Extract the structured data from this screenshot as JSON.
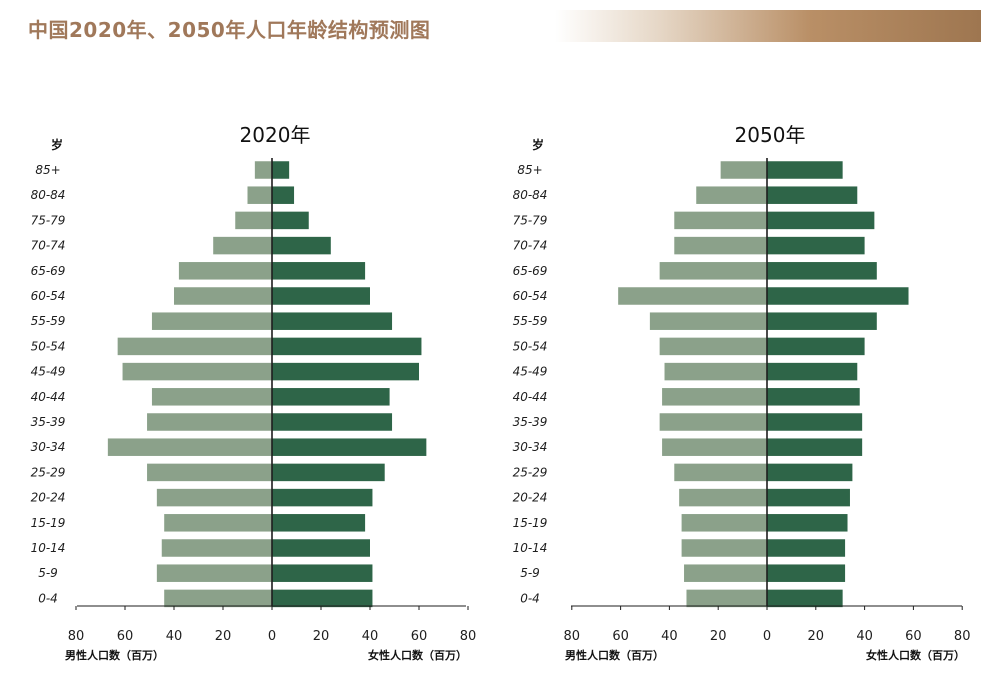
{
  "title": "中国2020年、2050年人口年龄结构预测图",
  "colors": {
    "male": "#8ba18a",
    "female": "#2e6548",
    "title": "#a0785a"
  },
  "chart_data": [
    {
      "type": "bar",
      "title": "2020年",
      "unit_label": "岁",
      "categories": [
        "85+",
        "80-84",
        "75-79",
        "70-74",
        "65-69",
        "60-54",
        "55-59",
        "50-54",
        "45-49",
        "40-44",
        "35-39",
        "30-34",
        "25-29",
        "20-24",
        "15-19",
        "10-14",
        "5-9",
        "0-4"
      ],
      "series": [
        {
          "name": "男性人口数（百万）",
          "values": [
            7,
            10,
            15,
            24,
            38,
            40,
            49,
            63,
            61,
            49,
            51,
            67,
            51,
            47,
            44,
            45,
            47,
            44
          ]
        },
        {
          "name": "女性人口数（百万）",
          "values": [
            7,
            9,
            15,
            24,
            38,
            40,
            49,
            61,
            60,
            48,
            49,
            63,
            46,
            41,
            38,
            40,
            41,
            41
          ]
        }
      ],
      "xlim": [
        -80,
        80
      ],
      "xticks": [
        "80",
        "60",
        "40",
        "20",
        "0",
        "20",
        "40",
        "60",
        "80"
      ],
      "xlabel_left": "男性人口数（百万）",
      "xlabel_right": "女性人口数（百万）"
    },
    {
      "type": "bar",
      "title": "2050年",
      "unit_label": "岁",
      "categories": [
        "85+",
        "80-84",
        "75-79",
        "70-74",
        "65-69",
        "60-54",
        "55-59",
        "50-54",
        "45-49",
        "40-44",
        "35-39",
        "30-34",
        "25-29",
        "20-24",
        "15-19",
        "10-14",
        "5-9",
        "0-4"
      ],
      "series": [
        {
          "name": "男性人口数（百万）",
          "values": [
            19,
            29,
            38,
            38,
            44,
            61,
            48,
            44,
            42,
            43,
            44,
            43,
            38,
            36,
            35,
            35,
            34,
            33
          ]
        },
        {
          "name": "女性人口数（百万）",
          "values": [
            31,
            37,
            44,
            40,
            45,
            58,
            45,
            40,
            37,
            38,
            39,
            39,
            35,
            34,
            33,
            32,
            32,
            31
          ]
        }
      ],
      "xlim": [
        -80,
        80
      ],
      "xticks": [
        "80",
        "60",
        "40",
        "20",
        "0",
        "20",
        "40",
        "60",
        "80"
      ],
      "xlabel_left": "男性人口数（百万）",
      "xlabel_right": "女性人口数（百万）"
    }
  ]
}
